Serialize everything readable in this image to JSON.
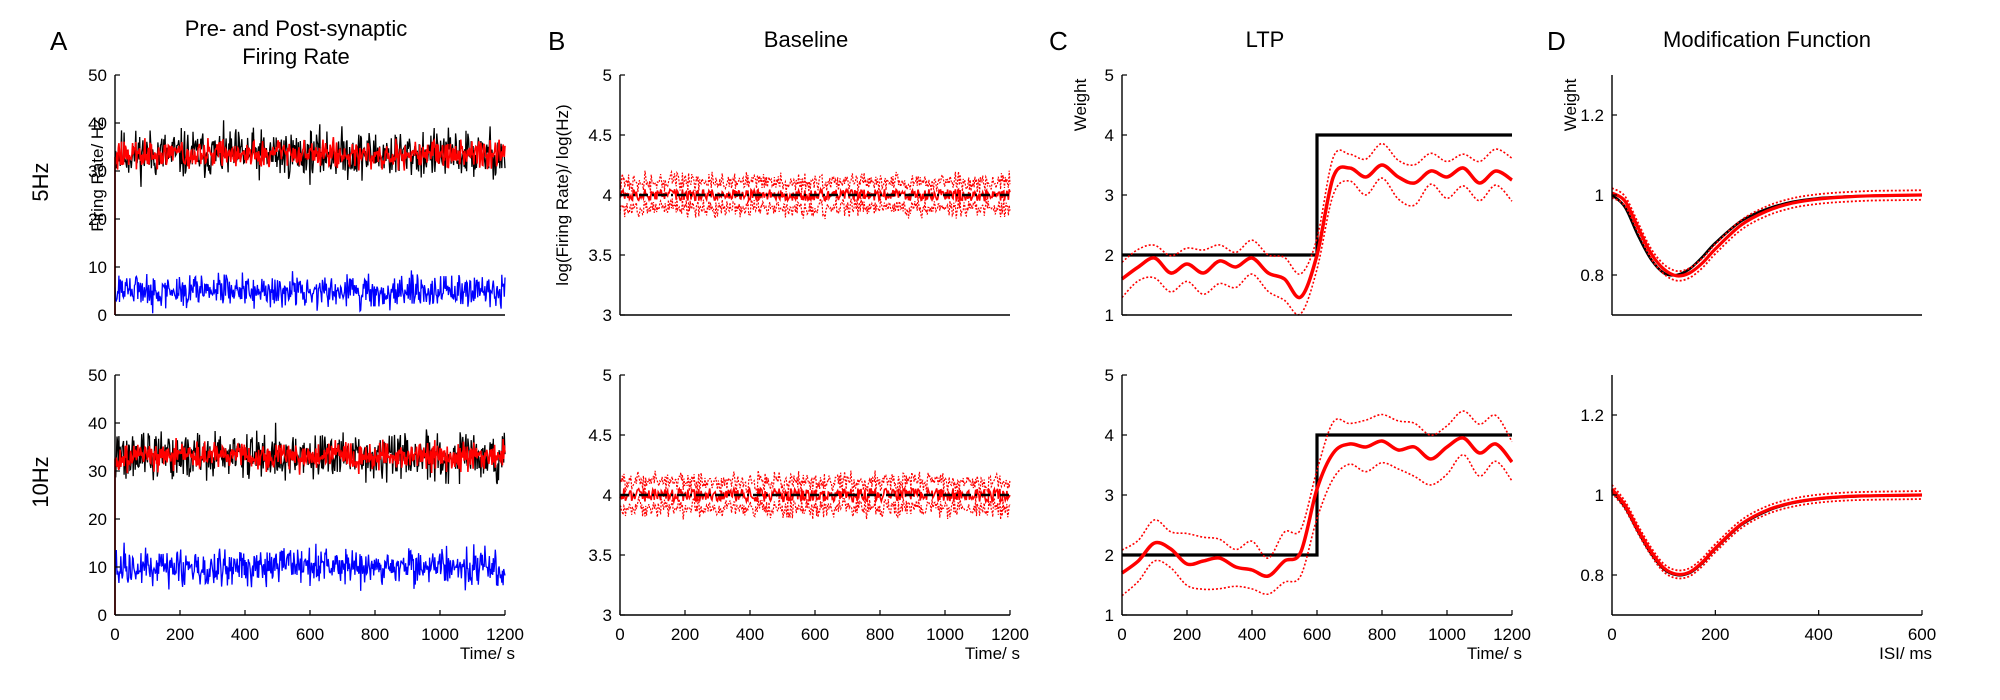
{
  "figure": {
    "row_labels": [
      "5Hz",
      "10Hz"
    ],
    "columns": [
      {
        "letter": "A",
        "title_lines": [
          "Pre- and Post-synaptic",
          "Firing Rate"
        ]
      },
      {
        "letter": "B",
        "title_lines": [
          "Baseline"
        ]
      },
      {
        "letter": "C",
        "title_lines": [
          "LTP"
        ]
      },
      {
        "letter": "D",
        "title_lines": [
          "Modification Function"
        ]
      }
    ],
    "colors": {
      "black": "#000000",
      "red": "#ff0000",
      "blue": "#0000ff"
    }
  },
  "chart_data": [
    {
      "id": "A1",
      "type": "line",
      "row": "5Hz",
      "col": "A",
      "ylabel": "Firing Rate/ Hz",
      "xlabel": "",
      "xlim": [
        0,
        1200
      ],
      "ylim": [
        0,
        50
      ],
      "xticks": [],
      "yticks": [
        0,
        10,
        20,
        30,
        40,
        50
      ],
      "series": [
        {
          "color": "black",
          "style": "noise",
          "mean": 33.5,
          "amp": 4.5,
          "start_spike": true
        },
        {
          "color": "red",
          "style": "noise",
          "mean": 33.5,
          "amp": 2.5,
          "start_spike": true
        },
        {
          "color": "blue",
          "style": "noise",
          "mean": 5,
          "amp": 3
        }
      ]
    },
    {
      "id": "A2",
      "type": "line",
      "row": "10Hz",
      "col": "A",
      "ylabel": "",
      "xlabel": "Time/ s",
      "xlim": [
        0,
        1200
      ],
      "ylim": [
        0,
        50
      ],
      "xticks": [
        0,
        200,
        400,
        600,
        800,
        1000,
        1200
      ],
      "yticks": [
        0,
        10,
        20,
        30,
        40,
        50
      ],
      "series": [
        {
          "color": "black",
          "style": "noise",
          "mean": 33,
          "amp": 4.5,
          "start_spike": true
        },
        {
          "color": "red",
          "style": "noise",
          "mean": 33,
          "amp": 2.5,
          "start_spike": true
        },
        {
          "color": "blue",
          "style": "noise",
          "mean": 10,
          "amp": 3.5
        }
      ]
    },
    {
      "id": "B1",
      "type": "line",
      "row": "5Hz",
      "col": "B",
      "ylabel": "log(Firing Rate)/ log(Hz)",
      "xlabel": "",
      "xlim": [
        0,
        1200
      ],
      "ylim": [
        3,
        5
      ],
      "xticks": [],
      "yticks": [
        3,
        3.5,
        4,
        4.5,
        5
      ],
      "series": [
        {
          "color": "red",
          "style": "band",
          "mean": 4.0,
          "amp": 0.06,
          "band": 0.12
        },
        {
          "color": "black",
          "style": "dashdot",
          "value": 4.0
        }
      ]
    },
    {
      "id": "B2",
      "type": "line",
      "row": "10Hz",
      "col": "B",
      "ylabel": "",
      "xlabel": "Time/ s",
      "xlim": [
        0,
        1200
      ],
      "ylim": [
        3,
        5
      ],
      "xticks": [
        0,
        200,
        400,
        600,
        800,
        1000,
        1200
      ],
      "yticks": [
        3,
        3.5,
        4,
        4.5,
        5
      ],
      "series": [
        {
          "color": "red",
          "style": "band",
          "mean": 4.0,
          "amp": 0.07,
          "band": 0.12
        },
        {
          "color": "black",
          "style": "dashdot",
          "value": 4.0
        }
      ]
    },
    {
      "id": "C1",
      "type": "line",
      "row": "5Hz",
      "col": "C",
      "ylabel": "Weight",
      "xlabel": "",
      "xlim": [
        0,
        1200
      ],
      "ylim": [
        1,
        5
      ],
      "xticks": [],
      "yticks": [
        1,
        2,
        3,
        4,
        5
      ],
      "series": [
        {
          "color": "black",
          "style": "step",
          "x": [
            0,
            600,
            600,
            1200
          ],
          "y": [
            2,
            2,
            4,
            4
          ]
        },
        {
          "color": "red",
          "style": "band",
          "smooth": true,
          "x": [
            0,
            50,
            100,
            150,
            200,
            250,
            300,
            350,
            400,
            450,
            500,
            550,
            600,
            650,
            700,
            750,
            800,
            850,
            900,
            950,
            1000,
            1050,
            1100,
            1150,
            1200
          ],
          "y": [
            1.6,
            1.8,
            1.95,
            1.7,
            1.85,
            1.7,
            1.9,
            1.8,
            1.95,
            1.7,
            1.6,
            1.3,
            2.0,
            3.3,
            3.45,
            3.3,
            3.5,
            3.3,
            3.2,
            3.4,
            3.3,
            3.45,
            3.2,
            3.4,
            3.25
          ],
          "band": 0.3
        }
      ]
    },
    {
      "id": "C2",
      "type": "line",
      "row": "10Hz",
      "col": "C",
      "ylabel": "",
      "xlabel": "Time/ s",
      "xlim": [
        0,
        1200
      ],
      "ylim": [
        1,
        5
      ],
      "xticks": [
        0,
        200,
        400,
        600,
        800,
        1000,
        1200
      ],
      "yticks": [
        1,
        2,
        3,
        4,
        5
      ],
      "series": [
        {
          "color": "black",
          "style": "step",
          "x": [
            0,
            600,
            600,
            1200
          ],
          "y": [
            2,
            2,
            4,
            4
          ]
        },
        {
          "color": "red",
          "style": "band",
          "smooth": true,
          "x": [
            0,
            50,
            100,
            150,
            200,
            250,
            300,
            350,
            400,
            450,
            500,
            550,
            600,
            650,
            700,
            750,
            800,
            850,
            900,
            950,
            1000,
            1050,
            1100,
            1150,
            1200
          ],
          "y": [
            1.7,
            1.9,
            2.2,
            2.1,
            1.85,
            1.9,
            1.95,
            1.8,
            1.75,
            1.65,
            1.9,
            2.05,
            3.1,
            3.7,
            3.85,
            3.8,
            3.9,
            3.75,
            3.8,
            3.6,
            3.8,
            3.95,
            3.7,
            3.85,
            3.55
          ],
          "band": 0.4
        }
      ]
    },
    {
      "id": "D1",
      "type": "line",
      "row": "5Hz",
      "col": "D",
      "ylabel": "Weight",
      "xlabel": "",
      "xlim": [
        0,
        600
      ],
      "ylim": [
        0.7,
        1.3
      ],
      "xticks": [],
      "yticks": [
        0.8,
        1,
        1.2
      ],
      "series": [
        {
          "color": "black",
          "style": "curve",
          "x": [
            0,
            25,
            50,
            75,
            100,
            125,
            150,
            175,
            200,
            250,
            300,
            350,
            400,
            450,
            500,
            550,
            600
          ],
          "y": [
            1.0,
            0.97,
            0.9,
            0.84,
            0.805,
            0.8,
            0.815,
            0.845,
            0.88,
            0.935,
            0.965,
            0.983,
            0.992,
            0.996,
            0.998,
            0.999,
            1.0
          ]
        },
        {
          "color": "red",
          "style": "bandcurve",
          "band": 0.012,
          "x": [
            0,
            25,
            50,
            75,
            100,
            125,
            150,
            175,
            200,
            250,
            300,
            350,
            400,
            450,
            500,
            550,
            600
          ],
          "y": [
            1.005,
            0.985,
            0.92,
            0.855,
            0.815,
            0.798,
            0.805,
            0.83,
            0.865,
            0.925,
            0.96,
            0.98,
            0.99,
            0.995,
            0.998,
            0.999,
            1.0
          ]
        }
      ]
    },
    {
      "id": "D2",
      "type": "line",
      "row": "10Hz",
      "col": "D",
      "ylabel": "",
      "xlabel": "ISI/ ms",
      "xlim": [
        0,
        600
      ],
      "ylim": [
        0.7,
        1.3
      ],
      "xticks": [
        0,
        200,
        400,
        600
      ],
      "yticks": [
        0.8,
        1,
        1.2
      ],
      "series": [
        {
          "color": "black",
          "style": "curve",
          "x": [
            0,
            25,
            50,
            75,
            100,
            125,
            150,
            175,
            200,
            250,
            300,
            350,
            400,
            450,
            500,
            550,
            600
          ],
          "y": [
            1.01,
            0.97,
            0.91,
            0.855,
            0.815,
            0.8,
            0.805,
            0.83,
            0.865,
            0.925,
            0.96,
            0.98,
            0.99,
            0.995,
            0.998,
            0.999,
            1.0
          ]
        },
        {
          "color": "red",
          "style": "bandcurve",
          "band": 0.01,
          "x": [
            0,
            25,
            50,
            75,
            100,
            125,
            150,
            175,
            200,
            250,
            300,
            350,
            400,
            450,
            500,
            550,
            600
          ],
          "y": [
            1.015,
            0.975,
            0.915,
            0.86,
            0.818,
            0.802,
            0.807,
            0.832,
            0.867,
            0.927,
            0.962,
            0.981,
            0.991,
            0.996,
            0.998,
            0.999,
            1.0
          ]
        }
      ]
    }
  ]
}
